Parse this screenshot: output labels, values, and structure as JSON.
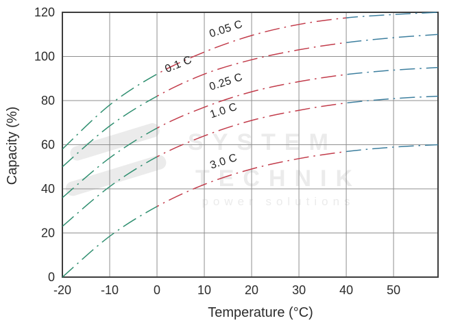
{
  "page": {
    "background": "#ffffff"
  },
  "chart_data": {
    "type": "line",
    "title": "",
    "xlabel": "Temperature (°C)",
    "ylabel": "Capacity (%)",
    "xlim": [
      -20,
      59.4
    ],
    "ylim": [
      0,
      120
    ],
    "grid": true,
    "line_style": "dash-dot",
    "x_tick_values": [
      -20,
      -10,
      0,
      10,
      20,
      30,
      40,
      50
    ],
    "x_tick_labels": [
      "-20",
      "-10",
      "0",
      "10",
      "20",
      "30",
      "40",
      "50"
    ],
    "y_tick_values": [
      0,
      20,
      40,
      60,
      80,
      100,
      120
    ],
    "y_tick_labels": [
      "0",
      "20",
      "40",
      "60",
      "80",
      "100",
      "120"
    ],
    "x": [
      -20,
      -10,
      0,
      10,
      20,
      30,
      40,
      50,
      59.4
    ],
    "series": [
      {
        "name": "0.05 C",
        "values": [
          58,
          78,
          92,
          102,
          109.5,
          114.5,
          117.5,
          119,
          120
        ]
      },
      {
        "name": "0.1 C",
        "values": [
          50,
          68.5,
          82,
          92,
          98.5,
          103,
          106.3,
          108.5,
          110
        ]
      },
      {
        "name": "0.25 C",
        "values": [
          36,
          54,
          67.5,
          77,
          84,
          88.6,
          91.8,
          93.8,
          95
        ]
      },
      {
        "name": "1.0 C",
        "values": [
          23,
          41,
          54.5,
          64,
          71,
          75.6,
          78.9,
          80.9,
          82
        ]
      },
      {
        "name": "3.0 C",
        "values": [
          0,
          18.5,
          32,
          42,
          49,
          53.7,
          56.9,
          58.9,
          60
        ]
      }
    ],
    "temperature_color_bands": [
      {
        "from": -20,
        "to": 0,
        "color": "#2f8f70"
      },
      {
        "from": 0,
        "to": 40,
        "color": "#c23b4a"
      },
      {
        "from": 40,
        "to": 59.4,
        "color": "#3b7e9e"
      }
    ],
    "curve_labels": [
      {
        "text": "0.05 C",
        "t": 14.8,
        "capacity": 111,
        "rotate": -18
      },
      {
        "text": "0.1 C",
        "t": 4.8,
        "capacity": 95,
        "rotate": -22
      },
      {
        "text": "0.25 C",
        "t": 14.8,
        "capacity": 87,
        "rotate": -18
      },
      {
        "text": "1.0 C",
        "t": 14.3,
        "capacity": 74,
        "rotate": -18
      },
      {
        "text": "3.0 C",
        "t": 14.3,
        "capacity": 51,
        "rotate": -18
      }
    ],
    "grid_color": "#8f8f8f",
    "frame_color": "#3c3c3c",
    "text_color": "#2b2b2b"
  },
  "watermark": {
    "line1": "SYSTEM",
    "line2": "TECHNIK",
    "line3": "power solutions",
    "color": "#ebebeb"
  }
}
